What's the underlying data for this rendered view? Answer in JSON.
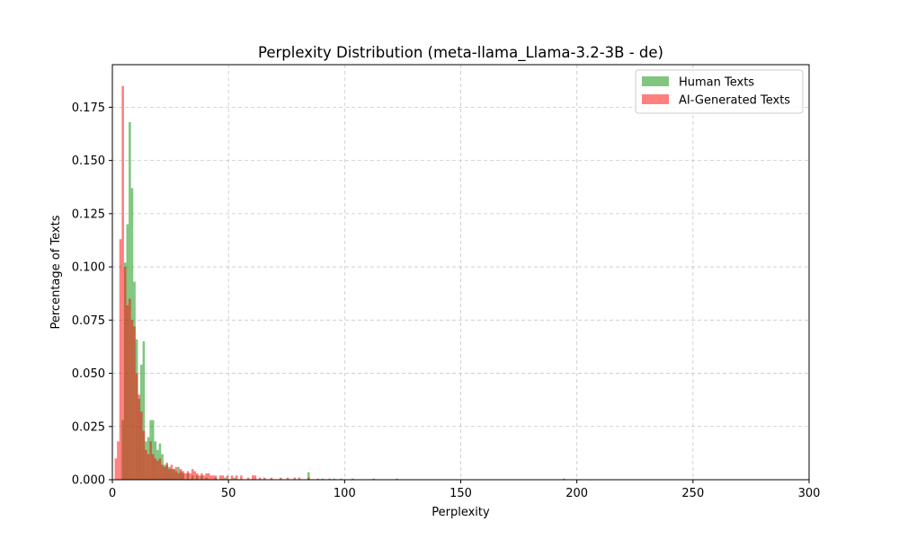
{
  "chart_data": {
    "type": "bar",
    "title": "Perplexity Distribution (meta-llama_Llama-3.2-3B - de)",
    "xlabel": "Perplexity",
    "ylabel": "Percentage of Texts",
    "xlim": [
      0,
      300
    ],
    "ylim": [
      0,
      0.195
    ],
    "xticks": [
      "0",
      "50",
      "100",
      "150",
      "200",
      "250",
      "300"
    ],
    "xtick_values": [
      0,
      50,
      100,
      150,
      200,
      250,
      300
    ],
    "yticks": [
      "0.000",
      "0.025",
      "0.050",
      "0.075",
      "0.100",
      "0.125",
      "0.150",
      "0.175"
    ],
    "ytick_values": [
      0,
      0.025,
      0.05,
      0.075,
      0.1,
      0.125,
      0.15,
      0.175
    ],
    "grid": true,
    "legend_position": "top-right",
    "bin_width": 1,
    "series": [
      {
        "name": "Human Texts",
        "color": "#2ca02c",
        "opacity": 0.6,
        "bins": [
          [
            3,
            0.0
          ],
          [
            4,
            0.028
          ],
          [
            5,
            0.102
          ],
          [
            6,
            0.12
          ],
          [
            7,
            0.168
          ],
          [
            8,
            0.137
          ],
          [
            9,
            0.093
          ],
          [
            10,
            0.066
          ],
          [
            11,
            0.038
          ],
          [
            12,
            0.054
          ],
          [
            13,
            0.065
          ],
          [
            14,
            0.018
          ],
          [
            15,
            0.02
          ],
          [
            16,
            0.028
          ],
          [
            17,
            0.028
          ],
          [
            18,
            0.018
          ],
          [
            19,
            0.014
          ],
          [
            20,
            0.017
          ],
          [
            21,
            0.012
          ],
          [
            22,
            0.007
          ],
          [
            23,
            0.007
          ],
          [
            24,
            0.006
          ],
          [
            25,
            0.005
          ],
          [
            26,
            0.005
          ],
          [
            27,
            0.004
          ],
          [
            28,
            0.006
          ],
          [
            29,
            0.004
          ],
          [
            30,
            0.003
          ],
          [
            32,
            0.003
          ],
          [
            34,
            0.002
          ],
          [
            36,
            0.002
          ],
          [
            38,
            0.002
          ],
          [
            40,
            0.001
          ],
          [
            44,
            0.001
          ],
          [
            48,
            0.001
          ],
          [
            52,
            0.001
          ],
          [
            84,
            0.0035
          ],
          [
            90,
            0.0005
          ],
          [
            95,
            0.0005
          ],
          [
            122,
            0.0005
          ],
          [
            194,
            0.0005
          ]
        ]
      },
      {
        "name": "AI-Generated Texts",
        "color": "#ff0000",
        "opacity": 0.5,
        "bins": [
          [
            1,
            0.01
          ],
          [
            2,
            0.018
          ],
          [
            3,
            0.113
          ],
          [
            4,
            0.185
          ],
          [
            5,
            0.1
          ],
          [
            6,
            0.082
          ],
          [
            7,
            0.085
          ],
          [
            8,
            0.075
          ],
          [
            9,
            0.072
          ],
          [
            10,
            0.05
          ],
          [
            11,
            0.04
          ],
          [
            12,
            0.032
          ],
          [
            13,
            0.023
          ],
          [
            14,
            0.014
          ],
          [
            15,
            0.012
          ],
          [
            16,
            0.018
          ],
          [
            17,
            0.012
          ],
          [
            18,
            0.01
          ],
          [
            19,
            0.009
          ],
          [
            20,
            0.01
          ],
          [
            21,
            0.007
          ],
          [
            22,
            0.006
          ],
          [
            23,
            0.008
          ],
          [
            24,
            0.005
          ],
          [
            25,
            0.007
          ],
          [
            26,
            0.005
          ],
          [
            27,
            0.006
          ],
          [
            28,
            0.003
          ],
          [
            29,
            0.005
          ],
          [
            30,
            0.004
          ],
          [
            31,
            0.003
          ],
          [
            32,
            0.004
          ],
          [
            33,
            0.003
          ],
          [
            34,
            0.005
          ],
          [
            35,
            0.004
          ],
          [
            36,
            0.003
          ],
          [
            37,
            0.002
          ],
          [
            38,
            0.003
          ],
          [
            39,
            0.002
          ],
          [
            40,
            0.003
          ],
          [
            41,
            0.003
          ],
          [
            42,
            0.002
          ],
          [
            43,
            0.002
          ],
          [
            44,
            0.002
          ],
          [
            46,
            0.002
          ],
          [
            47,
            0.002
          ],
          [
            49,
            0.002
          ],
          [
            51,
            0.002
          ],
          [
            53,
            0.002
          ],
          [
            55,
            0.002
          ],
          [
            58,
            0.001
          ],
          [
            60,
            0.002
          ],
          [
            61,
            0.002
          ],
          [
            63,
            0.001
          ],
          [
            65,
            0.001
          ],
          [
            68,
            0.001
          ],
          [
            72,
            0.001
          ],
          [
            75,
            0.001
          ],
          [
            78,
            0.001
          ],
          [
            80,
            0.001
          ],
          [
            84,
            0.001
          ],
          [
            88,
            0.0005
          ],
          [
            93,
            0.0005
          ],
          [
            98,
            0.0005
          ],
          [
            103,
            0.0005
          ],
          [
            112,
            0.0005
          ]
        ]
      }
    ]
  }
}
